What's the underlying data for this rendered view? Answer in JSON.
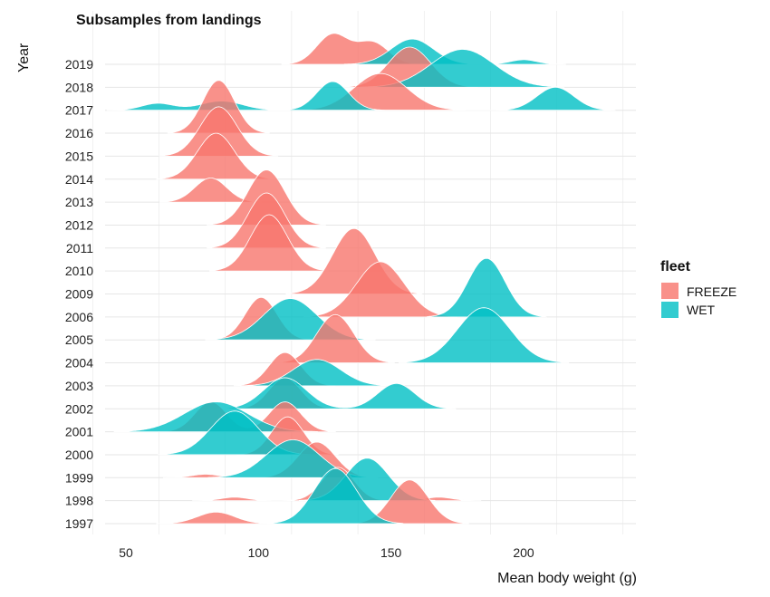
{
  "chart_data": {
    "type": "ridgeline",
    "title": "Subsamples from landings",
    "xlabel": "Mean body weight (g)",
    "ylabel": "Year",
    "xlim": [
      31,
      241
    ],
    "x_ticks": [
      "50",
      "100",
      "150",
      "200"
    ],
    "categories": [
      "1997",
      "1998",
      "1999",
      "2000",
      "2001",
      "2002",
      "2003",
      "2004",
      "2005",
      "2006",
      "2009",
      "2010",
      "2011",
      "2012",
      "2013",
      "2014",
      "2015",
      "2016",
      "2017",
      "2018",
      "2019"
    ],
    "legend": {
      "title": "fleet",
      "position": "right",
      "entries": [
        "FREEZE",
        "WET"
      ]
    },
    "colors": {
      "FREEZE": "#F8766D",
      "WET": "#00BFC4",
      "grid": "#e6e6e6"
    },
    "grid": true,
    "series": [
      {
        "name": "FREEZE",
        "densities": [
          {
            "year": "1997",
            "peaks": [
              {
                "mean": 84,
                "sd": 7,
                "height": 0.5
              },
              {
                "mean": 157,
                "sd": 7,
                "height": 1.9
              }
            ]
          },
          {
            "year": "1998",
            "peaks": [
              {
                "mean": 91,
                "sd": 5,
                "height": 0.15
              },
              {
                "mean": 130,
                "sd": 6,
                "height": 1.45
              },
              {
                "mean": 168,
                "sd": 5,
                "height": 0.15
              }
            ]
          },
          {
            "year": "1999",
            "peaks": [
              {
                "mean": 80,
                "sd": 5,
                "height": 0.15
              },
              {
                "mean": 122,
                "sd": 7,
                "height": 1.55
              }
            ]
          },
          {
            "year": "2000",
            "peaks": [
              {
                "mean": 111,
                "sd": 6,
                "height": 1.65
              }
            ]
          },
          {
            "year": "2001",
            "peaks": [
              {
                "mean": 82,
                "sd": 6,
                "height": 1.3
              },
              {
                "mean": 110,
                "sd": 6,
                "height": 1.3
              }
            ]
          },
          {
            "year": "2002",
            "peaks": [
              {
                "mean": 110,
                "sd": 6,
                "height": 1.35
              }
            ]
          },
          {
            "year": "2003",
            "peaks": [
              {
                "mean": 110,
                "sd": 6,
                "height": 1.45
              }
            ]
          },
          {
            "year": "2004",
            "peaks": [
              {
                "mean": 129,
                "sd": 7,
                "height": 2.1
              }
            ]
          },
          {
            "year": "2005",
            "peaks": [
              {
                "mean": 101,
                "sd": 6,
                "height": 1.85
              }
            ]
          },
          {
            "year": "2006",
            "peaks": [
              {
                "mean": 146,
                "sd": 9,
                "height": 2.4
              }
            ]
          },
          {
            "year": "2009",
            "peaks": [
              {
                "mean": 136,
                "sd": 8,
                "height": 2.85
              }
            ]
          },
          {
            "year": "2010",
            "peaks": [
              {
                "mean": 104,
                "sd": 7,
                "height": 2.45
              }
            ]
          },
          {
            "year": "2011",
            "peaks": [
              {
                "mean": 103,
                "sd": 7,
                "height": 2.4
              }
            ]
          },
          {
            "year": "2012",
            "peaks": [
              {
                "mean": 103,
                "sd": 7,
                "height": 2.4
              }
            ]
          },
          {
            "year": "2013",
            "peaks": [
              {
                "mean": 82,
                "sd": 6,
                "height": 1.05
              }
            ]
          },
          {
            "year": "2014",
            "peaks": [
              {
                "mean": 84,
                "sd": 7,
                "height": 2.0
              }
            ]
          },
          {
            "year": "2015",
            "peaks": [
              {
                "mean": 85,
                "sd": 7,
                "height": 2.15
              }
            ]
          },
          {
            "year": "2016",
            "peaks": [
              {
                "mean": 85,
                "sd": 6,
                "height": 2.3
              }
            ]
          },
          {
            "year": "2017",
            "peaks": [
              {
                "mean": 146,
                "sd": 10,
                "height": 1.6
              }
            ]
          },
          {
            "year": "2018",
            "peaks": [
              {
                "mean": 157,
                "sd": 8,
                "height": 1.75
              }
            ]
          },
          {
            "year": "2019",
            "peaks": [
              {
                "mean": 128,
                "sd": 6,
                "height": 1.3
              },
              {
                "mean": 143,
                "sd": 6,
                "height": 0.95
              }
            ]
          }
        ]
      },
      {
        "name": "WET",
        "densities": [
          {
            "year": "1997",
            "peaks": [
              {
                "mean": 129,
                "sd": 8,
                "height": 2.4
              }
            ]
          },
          {
            "year": "1998",
            "peaks": [
              {
                "mean": 141,
                "sd": 8,
                "height": 1.85
              }
            ]
          },
          {
            "year": "1999",
            "peaks": [
              {
                "mean": 113,
                "sd": 10,
                "height": 1.65
              }
            ]
          },
          {
            "year": "2000",
            "peaks": [
              {
                "mean": 91,
                "sd": 9,
                "height": 1.9
              }
            ]
          },
          {
            "year": "2001",
            "peaks": [
              {
                "mean": 84,
                "sd": 12,
                "height": 1.3
              }
            ]
          },
          {
            "year": "2002",
            "peaks": [
              {
                "mean": 110,
                "sd": 8,
                "height": 1.35
              },
              {
                "mean": 152,
                "sd": 7,
                "height": 1.1
              }
            ]
          },
          {
            "year": "2003",
            "peaks": [
              {
                "mean": 122,
                "sd": 9,
                "height": 1.15
              }
            ]
          },
          {
            "year": "2004",
            "peaks": [
              {
                "mean": 185,
                "sd": 10,
                "height": 2.4
              }
            ]
          },
          {
            "year": "2005",
            "peaks": [
              {
                "mean": 112,
                "sd": 10,
                "height": 1.8
              }
            ]
          },
          {
            "year": "2006",
            "peaks": [
              {
                "mean": 186,
                "sd": 7,
                "height": 2.55
              }
            ]
          },
          {
            "year": "2017",
            "peaks": [
              {
                "mean": 62,
                "sd": 6,
                "height": 0.3
              },
              {
                "mean": 86,
                "sd": 8,
                "height": 0.4
              },
              {
                "mean": 128,
                "sd": 6,
                "height": 1.25
              },
              {
                "mean": 212,
                "sd": 7,
                "height": 1.0
              }
            ]
          },
          {
            "year": "2018",
            "peaks": [
              {
                "mean": 177,
                "sd": 12,
                "height": 1.65
              }
            ]
          },
          {
            "year": "2019",
            "peaks": [
              {
                "mean": 158,
                "sd": 8,
                "height": 1.1
              },
              {
                "mean": 200,
                "sd": 5,
                "height": 0.2
              }
            ]
          }
        ]
      }
    ]
  }
}
